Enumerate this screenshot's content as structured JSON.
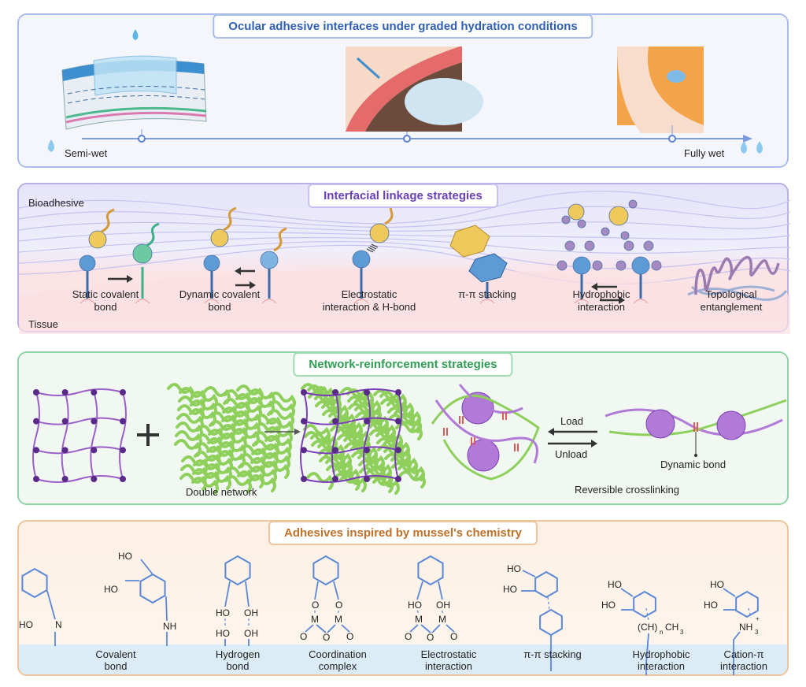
{
  "panel1": {
    "title": "Ocular adhesive interfaces under graded hydration conditions",
    "left_label": "Semi-wet",
    "right_label": "Fully wet",
    "accent": "#2f5fb3"
  },
  "panel2": {
    "title": "Interfacial linkage strategies",
    "top_label": "Bioadhesive",
    "bottom_label": "Tissue",
    "items": [
      {
        "l1": "Static covalent",
        "l2": "bond"
      },
      {
        "l1": "Dynamic covalent",
        "l2": "bond"
      },
      {
        "l1": "Electrostatic",
        "l2": "interaction & H-bond"
      },
      {
        "l1": "π-π stacking",
        "l2": ""
      },
      {
        "l1": "Hydrophobic",
        "l2": "interaction"
      },
      {
        "l1": "Topological",
        "l2": "entanglement"
      }
    ],
    "accent": "#6a3fb8"
  },
  "panel3": {
    "title": "Network-reinforcement strategies",
    "double_network": "Double network",
    "load": "Load",
    "unload": "Unload",
    "dynamic_bond": "Dynamic bond",
    "reversible": "Reversible crosslinking",
    "accent": "#2f9e53"
  },
  "panel4": {
    "title": "Adhesives inspired by mussel's chemistry",
    "items": [
      {
        "l1": "Covalent",
        "l2": "bond"
      },
      {
        "l1": "Hydrogen",
        "l2": "bond"
      },
      {
        "l1": "Coordination",
        "l2": "complex"
      },
      {
        "l1": "Electrostatic",
        "l2": "interaction"
      },
      {
        "l1": "π-π stacking",
        "l2": ""
      },
      {
        "l1": "Hydrophobic",
        "l2": "interaction"
      },
      {
        "l1": "Cation-π",
        "l2": "interaction"
      }
    ],
    "chem": {
      "HO": "HO",
      "OH": "OH",
      "N": "N",
      "NH": "NH",
      "O": "O",
      "M": "M",
      "CH": "(CH)",
      "n": "n",
      "CH3": "CH",
      "three": "3",
      "NH3": "NH",
      "plus": "+"
    },
    "accent": "#c0712a"
  }
}
